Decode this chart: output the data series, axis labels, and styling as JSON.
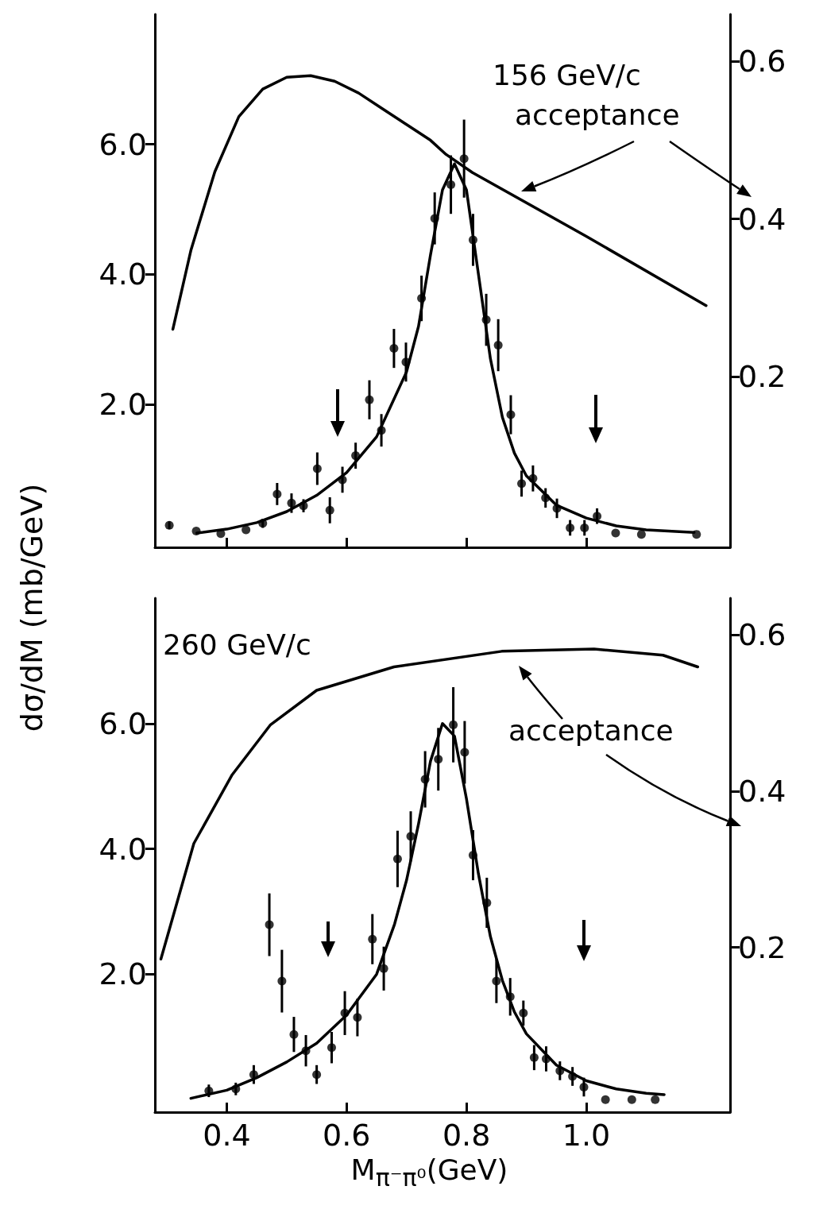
{
  "chart_data": [
    {
      "type": "scatter",
      "tick_labels": "y",
      "ylabel": "dσ/dM (mb/GeV)",
      "annotations": [
        "156 GeV/c",
        "acceptance"
      ],
      "xlim": [
        0.28,
        1.24
      ],
      "xticks": [
        0.4,
        0.6,
        0.8,
        1.0
      ],
      "ylim": [
        -0.2,
        8.0
      ],
      "yticks": [
        {
          "value": 2,
          "label": "2.0"
        },
        {
          "value": 4,
          "label": "4.0"
        },
        {
          "value": 6,
          "label": "6.0"
        }
      ],
      "y2lim": [
        -0.017,
        0.66
      ],
      "y2ticks": [
        0.2,
        0.4,
        0.6
      ],
      "grid": false,
      "series": [
        {
          "marker": "circle",
          "color": "#000000",
          "x": [
            0.304,
            0.349,
            0.39,
            0.432,
            0.46,
            0.484,
            0.508,
            0.528,
            0.551,
            0.572,
            0.593,
            0.615,
            0.638,
            0.658,
            0.679,
            0.699,
            0.725,
            0.747,
            0.774,
            0.796,
            0.811,
            0.833,
            0.853,
            0.874,
            0.892,
            0.911,
            0.932,
            0.951,
            0.973,
            0.997,
            1.018,
            1.049,
            1.092,
            1.184
          ],
          "values": [
            0.14,
            0.05,
            0.01,
            0.07,
            0.17,
            0.62,
            0.48,
            0.44,
            1.01,
            0.37,
            0.84,
            1.21,
            2.07,
            1.6,
            2.86,
            2.65,
            3.63,
            4.86,
            5.38,
            5.78,
            4.53,
            3.3,
            2.91,
            1.84,
            0.78,
            0.86,
            0.56,
            0.4,
            0.1,
            0.1,
            0.28,
            0.02,
            0.0,
            0.0
          ],
          "errors": [
            0.06,
            null,
            null,
            null,
            0.07,
            0.17,
            0.15,
            0.1,
            0.25,
            0.2,
            0.2,
            0.2,
            0.3,
            0.25,
            0.3,
            0.3,
            0.35,
            0.4,
            0.45,
            0.6,
            0.4,
            0.4,
            0.4,
            0.3,
            0.2,
            0.2,
            0.15,
            0.15,
            0.12,
            0.12,
            0.12,
            null,
            null,
            null
          ]
        },
        {
          "type": "line",
          "color": "#000000",
          "x": [
            0.35,
            0.4,
            0.45,
            0.5,
            0.55,
            0.6,
            0.65,
            0.7,
            0.72,
            0.74,
            0.76,
            0.78,
            0.8,
            0.82,
            0.84,
            0.86,
            0.88,
            0.9,
            0.95,
            1.0,
            1.05,
            1.1,
            1.18
          ],
          "values": [
            0.02,
            0.08,
            0.18,
            0.35,
            0.6,
            0.95,
            1.5,
            2.5,
            3.2,
            4.3,
            5.3,
            5.7,
            5.3,
            4.0,
            2.7,
            1.8,
            1.25,
            0.9,
            0.45,
            0.25,
            0.13,
            0.07,
            0.03
          ]
        },
        {
          "type": "line",
          "axis": "y2",
          "color": "#000000",
          "x": [
            0.31,
            0.34,
            0.38,
            0.42,
            0.46,
            0.5,
            0.54,
            0.58,
            0.62,
            0.66,
            0.7,
            0.74,
            0.766,
            0.81,
            1.0,
            1.2
          ],
          "values": [
            0.26,
            0.36,
            0.46,
            0.53,
            0.565,
            0.58,
            0.582,
            0.575,
            0.56,
            0.54,
            0.52,
            0.5,
            0.482,
            0.459,
            0.378,
            0.29
          ]
        }
      ]
    },
    {
      "type": "scatter",
      "xlabel": "M$_{π⁻π⁰}$(GeV)",
      "annotations": [
        "260 GeV/c",
        "acceptance"
      ],
      "xlim": [
        0.28,
        1.24
      ],
      "xticks": [
        0.4,
        0.6,
        0.8,
        {
          "value": 1,
          "label": "1.0"
        }
      ],
      "ylim": [
        -0.2,
        8.0
      ],
      "yticks": [
        {
          "value": 2,
          "label": "2.0"
        },
        {
          "value": 4,
          "label": "4.0"
        },
        {
          "value": 6,
          "label": "6.0"
        }
      ],
      "y2lim": [
        -0.011,
        0.647
      ],
      "y2ticks": [
        0.2,
        0.4,
        0.6
      ],
      "grid": false,
      "series": [
        {
          "marker": "circle",
          "color": "#000000",
          "x": [
            0.37,
            0.415,
            0.445,
            0.471,
            0.492,
            0.512,
            0.532,
            0.55,
            0.575,
            0.597,
            0.618,
            0.643,
            0.662,
            0.685,
            0.707,
            0.731,
            0.753,
            0.778,
            0.797,
            0.811,
            0.834,
            0.85,
            0.873,
            0.895,
            0.913,
            0.933,
            0.956,
            0.977,
            0.996,
            1.032,
            1.076,
            1.115
          ],
          "values": [
            0.14,
            0.17,
            0.4,
            2.79,
            1.89,
            1.04,
            0.78,
            0.4,
            0.83,
            1.38,
            1.31,
            2.56,
            2.09,
            3.84,
            4.2,
            5.11,
            5.43,
            5.98,
            5.54,
            3.9,
            3.14,
            1.89,
            1.64,
            1.38,
            0.67,
            0.65,
            0.46,
            0.37,
            0.2,
            0.0,
            0.0,
            0.0
          ],
          "errors": [
            0.1,
            0.1,
            0.15,
            0.5,
            0.5,
            0.28,
            0.25,
            0.15,
            0.25,
            0.35,
            0.3,
            0.4,
            0.35,
            0.45,
            0.4,
            0.45,
            0.5,
            0.6,
            0.5,
            0.4,
            0.4,
            0.35,
            0.3,
            0.2,
            0.2,
            0.2,
            0.15,
            0.15,
            0.15,
            null,
            null,
            null
          ]
        },
        {
          "type": "line",
          "color": "#000000",
          "x": [
            0.34,
            0.4,
            0.45,
            0.5,
            0.55,
            0.6,
            0.65,
            0.68,
            0.7,
            0.72,
            0.74,
            0.76,
            0.78,
            0.8,
            0.82,
            0.84,
            0.86,
            0.88,
            0.9,
            0.95,
            1.0,
            1.05,
            1.1,
            1.13
          ],
          "values": [
            0.02,
            0.15,
            0.35,
            0.6,
            0.9,
            1.35,
            2.0,
            2.8,
            3.5,
            4.4,
            5.4,
            6.0,
            5.8,
            4.8,
            3.6,
            2.6,
            1.9,
            1.4,
            1.05,
            0.55,
            0.3,
            0.17,
            0.1,
            0.08
          ]
        },
        {
          "type": "line",
          "axis": "y2",
          "color": "#000000",
          "x": [
            0.29,
            0.345,
            0.409,
            0.473,
            0.55,
            0.679,
            0.859,
            1.013,
            1.128,
            1.186
          ],
          "values": [
            0.185,
            0.333,
            0.421,
            0.485,
            0.529,
            0.559,
            0.579,
            0.582,
            0.574,
            0.559
          ]
        }
      ]
    }
  ]
}
